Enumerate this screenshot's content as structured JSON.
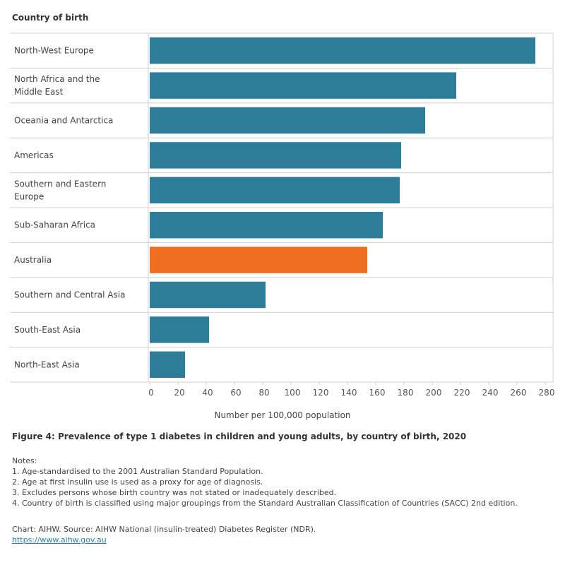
{
  "chart_data": {
    "type": "bar",
    "orientation": "horizontal",
    "column_header": "Country of birth",
    "categories": [
      "North-West Europe",
      "North Africa and the Middle East",
      "Oceania and Antarctica",
      "Americas",
      "Southern and Eastern Europe",
      "Sub-Saharan Africa",
      "Australia",
      "Southern and Central Asia",
      "South-East Asia",
      "North-East Asia"
    ],
    "values": [
      273,
      217,
      195,
      178,
      177,
      165,
      154,
      82,
      42,
      25
    ],
    "highlight": "Australia",
    "colors": {
      "bar": "#2e7d98",
      "highlight": "#f07023",
      "grid": "#d0d0d0"
    },
    "xlabel": "Number per 100,000 population",
    "xticks": [
      0,
      20,
      40,
      60,
      80,
      100,
      120,
      140,
      160,
      180,
      200,
      220,
      240,
      260,
      280
    ],
    "xlim": [
      0,
      285
    ]
  },
  "caption": {
    "figure": "Figure 4: Prevalence of type 1 diabetes in children and young adults, by country of birth, 2020",
    "notes_title": "Notes:",
    "notes": [
      "1. Age-standardised to the 2001 Australian Standard Population.",
      "2. Age at first insulin use is used as a proxy for age of diagnosis.",
      "3. Excludes persons whose birth country was not stated or inadequately described.",
      "4. Country of birth is classified using major groupings from the Standard Australian Classification of Countries (SACC) 2nd edition."
    ],
    "source": "Chart: AIHW. Source: AIHW National (insulin-treated) Diabetes Register (NDR).",
    "link": "https://www.aihw.gov.au"
  }
}
